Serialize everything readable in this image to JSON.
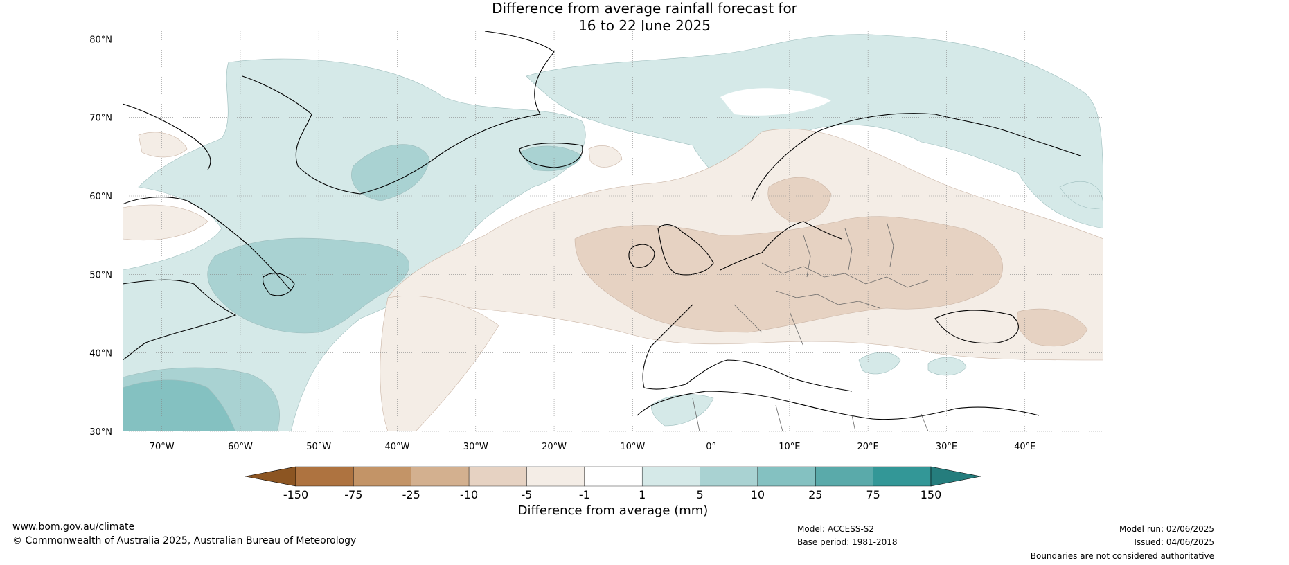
{
  "title": {
    "line1": "Difference from average rainfall forecast for",
    "line2": "16 to 22 June 2025"
  },
  "map": {
    "lat_ticks": [
      "80°N",
      "70°N",
      "60°N",
      "50°N",
      "40°N",
      "30°N"
    ],
    "lon_ticks": [
      "70°W",
      "60°W",
      "50°W",
      "40°W",
      "30°W",
      "20°W",
      "10°W",
      "0°",
      "10°E",
      "20°E",
      "30°E",
      "40°E"
    ],
    "extent": {
      "lon": [
        -75,
        50
      ],
      "lat": [
        30,
        81
      ]
    }
  },
  "colorbar": {
    "title": "Difference from average (mm)",
    "labels": [
      "-150",
      "-75",
      "-25",
      "-10",
      "-5",
      "-1",
      "1",
      "5",
      "10",
      "25",
      "75",
      "150"
    ],
    "colors": [
      "#8c5522",
      "#ae7340",
      "#c39467",
      "#d3b08f",
      "#e6d2c2",
      "#f4ede6",
      "#ffffff",
      "#d5e9e8",
      "#a9d2d2",
      "#84c1c1",
      "#5aaaaa",
      "#339797",
      "#257d7d"
    ]
  },
  "footer": {
    "website": "www.bom.gov.au/climate",
    "copyright": "© Commonwealth of Australia 2025, Australian Bureau of Meteorology",
    "model": "Model: ACCESS-S2",
    "base_period": "Base period: 1981-2018",
    "model_run": "Model run: 02/06/2025",
    "issued": "Issued: 04/06/2025",
    "disclaimer": "Boundaries are not considered authoritative"
  }
}
